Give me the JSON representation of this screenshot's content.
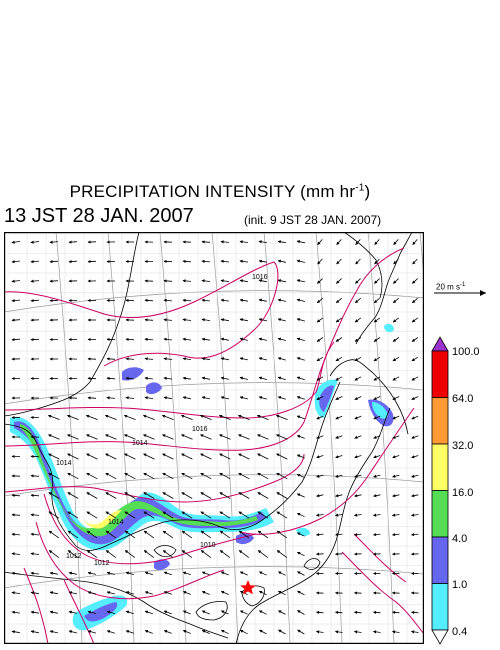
{
  "title": {
    "main": "PRECIPITATION INTENSITY (mm hr",
    "unit_exp": "-1",
    "close": ")"
  },
  "valid_time": "13 JST 28 JAN. 2007",
  "init_time": "(init. 9 JST 28 JAN. 2007)",
  "wind_reference": {
    "label": "20 m s",
    "exp": "-1"
  },
  "colorbar": {
    "levels": [
      "100.0",
      "64.0",
      "32.0",
      "16.0",
      "4.0",
      "1.0",
      "0.4"
    ],
    "colors": [
      "#9a32cd",
      "#ee0000",
      "#ff9933",
      "#ffff66",
      "#55dd55",
      "#6666ee",
      "#55eeff",
      "#ffffff"
    ]
  },
  "isobars": [
    "1016",
    "1014",
    "1016",
    "1014",
    "1012",
    "1010",
    "1012",
    "1014"
  ],
  "colors": {
    "isobar": "#cc0066",
    "coast": "#000000",
    "grid": "#999999",
    "marker": "#ff0000"
  }
}
